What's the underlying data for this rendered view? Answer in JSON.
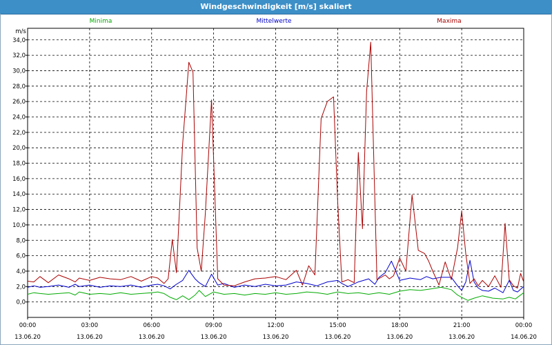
{
  "window": {
    "title": "Windgeschwindigkeit [m/s] skaliert"
  },
  "chart_data": {
    "type": "line",
    "title": "Windgeschwindigkeit [m/s] skaliert",
    "ylabel": "m/s",
    "ylim": [
      -2.0,
      35.5
    ],
    "xlim": [
      0,
      24
    ],
    "y_ticks": [
      "0,0",
      "2,0",
      "4,0",
      "6,0",
      "8,0",
      "10,0",
      "12,0",
      "14,0",
      "16,0",
      "18,0",
      "20,0",
      "22,0",
      "24,0",
      "26,0",
      "28,0",
      "30,0",
      "32,0",
      "34,0"
    ],
    "y_tick_values": [
      0,
      2,
      4,
      6,
      8,
      10,
      12,
      14,
      16,
      18,
      20,
      22,
      24,
      26,
      28,
      30,
      32,
      34
    ],
    "x_ticks": [
      {
        "time": "00:00",
        "date": "13.06.20"
      },
      {
        "time": "03:00",
        "date": "13.06.20"
      },
      {
        "time": "06:00",
        "date": "13.06.20"
      },
      {
        "time": "09:00",
        "date": "13.06.20"
      },
      {
        "time": "12:00",
        "date": "13.06.20"
      },
      {
        "time": "15:00",
        "date": "13.06.20"
      },
      {
        "time": "18:00",
        "date": "13.06.20"
      },
      {
        "time": "21:00",
        "date": "13.06.20"
      },
      {
        "time": "00:00",
        "date": "14.06.20"
      }
    ],
    "x_tick_values": [
      0,
      3,
      6,
      9,
      12,
      15,
      18,
      21,
      24
    ],
    "grid": true,
    "legend": "top",
    "series": [
      {
        "name": "Minima",
        "color": "#00aa00",
        "x": [
          0,
          0.3,
          0.6,
          1.0,
          1.5,
          2.0,
          2.3,
          2.5,
          3.0,
          3.5,
          4.0,
          4.5,
          5.0,
          5.5,
          6.0,
          6.3,
          6.6,
          6.9,
          7.2,
          7.5,
          7.8,
          8.1,
          8.3,
          8.6,
          9.0,
          9.5,
          10.0,
          10.5,
          11.0,
          11.5,
          12.0,
          12.5,
          13.0,
          13.5,
          14.0,
          14.5,
          15.0,
          15.5,
          16.0,
          16.5,
          17.0,
          17.5,
          18.0,
          18.5,
          19.0,
          19.5,
          20.0,
          20.5,
          20.8,
          21.0,
          21.3,
          21.6,
          22.0,
          22.5,
          23.0,
          23.3,
          23.6,
          24.0
        ],
        "values": [
          1.0,
          1.2,
          1.1,
          1.0,
          1.1,
          1.2,
          0.9,
          1.3,
          1.0,
          1.1,
          1.0,
          1.2,
          1.0,
          1.1,
          1.2,
          1.3,
          1.1,
          0.6,
          0.3,
          0.8,
          0.3,
          0.9,
          1.5,
          0.7,
          1.3,
          1.0,
          1.1,
          0.9,
          1.1,
          1.0,
          1.2,
          1.0,
          1.1,
          1.3,
          1.2,
          1.0,
          1.3,
          1.1,
          1.2,
          1.0,
          1.2,
          1.0,
          1.4,
          1.6,
          1.5,
          1.7,
          1.9,
          1.6,
          0.9,
          0.6,
          0.2,
          0.5,
          0.8,
          0.5,
          0.4,
          0.6,
          0.4,
          1.2
        ]
      },
      {
        "name": "Mittelwerte",
        "color": "#0000cc",
        "x": [
          0,
          0.3,
          0.6,
          1.0,
          1.5,
          2.0,
          2.3,
          2.5,
          3.0,
          3.5,
          4.0,
          4.5,
          5.0,
          5.5,
          6.0,
          6.3,
          6.6,
          6.9,
          7.2,
          7.5,
          7.8,
          8.1,
          8.3,
          8.6,
          8.9,
          9.2,
          9.5,
          10.0,
          10.5,
          11.0,
          11.5,
          12.0,
          12.5,
          13.0,
          13.5,
          14.0,
          14.5,
          15.0,
          15.2,
          15.5,
          16.0,
          16.5,
          16.8,
          17.0,
          17.3,
          17.6,
          18.0,
          18.5,
          19.0,
          19.3,
          19.6,
          20.0,
          20.5,
          20.8,
          21.0,
          21.2,
          21.4,
          21.6,
          21.8,
          22.0,
          22.3,
          22.6,
          23.0,
          23.3,
          23.5,
          23.7,
          24.0
        ],
        "values": [
          1.9,
          2.1,
          1.9,
          2.0,
          2.2,
          1.9,
          2.3,
          2.0,
          2.2,
          1.9,
          2.1,
          2.0,
          2.2,
          1.9,
          2.2,
          2.3,
          2.1,
          1.7,
          2.3,
          2.8,
          4.1,
          3.0,
          2.5,
          2.0,
          3.6,
          2.2,
          2.4,
          1.9,
          2.2,
          2.0,
          2.3,
          2.1,
          2.2,
          2.6,
          2.4,
          2.1,
          2.6,
          2.8,
          2.4,
          2.0,
          2.6,
          3.0,
          2.3,
          3.2,
          3.8,
          5.3,
          2.8,
          3.1,
          2.9,
          3.3,
          3.0,
          3.2,
          3.2,
          2.1,
          1.5,
          2.6,
          5.4,
          2.6,
          1.8,
          1.5,
          1.4,
          1.8,
          1.2,
          2.8,
          1.5,
          1.3,
          2.0
        ]
      },
      {
        "name": "Maxima",
        "color": "#aa0000",
        "x": [
          0,
          0.3,
          0.6,
          1.0,
          1.5,
          2.0,
          2.3,
          2.5,
          3.0,
          3.5,
          4.0,
          4.5,
          5.0,
          5.5,
          6.0,
          6.3,
          6.6,
          6.8,
          7.0,
          7.2,
          7.5,
          7.8,
          8.0,
          8.2,
          8.4,
          8.6,
          8.9,
          9.2,
          9.5,
          10.0,
          10.5,
          11.0,
          11.5,
          12.0,
          12.5,
          13.0,
          13.3,
          13.6,
          13.9,
          14.2,
          14.5,
          14.8,
          15.0,
          15.2,
          15.5,
          15.8,
          16.0,
          16.2,
          16.4,
          16.6,
          16.9,
          17.1,
          17.3,
          17.5,
          17.7,
          18.0,
          18.3,
          18.6,
          18.9,
          19.2,
          19.4,
          19.6,
          19.9,
          20.2,
          20.5,
          20.8,
          21.0,
          21.2,
          21.4,
          21.6,
          21.8,
          22.0,
          22.3,
          22.6,
          22.9,
          23.1,
          23.3,
          23.5,
          23.7,
          23.85,
          24.0
        ],
        "values": [
          2.7,
          2.6,
          3.3,
          2.5,
          3.5,
          3.0,
          2.6,
          3.1,
          2.8,
          3.2,
          3.0,
          2.9,
          3.3,
          2.7,
          3.3,
          3.1,
          2.4,
          3.0,
          8.1,
          3.8,
          20.5,
          31.1,
          29.8,
          7.0,
          4.0,
          11.5,
          26.2,
          3.0,
          2.2,
          2.1,
          2.6,
          3.0,
          3.1,
          3.3,
          2.9,
          4.1,
          2.2,
          4.7,
          3.5,
          23.8,
          26.0,
          26.6,
          13.0,
          2.6,
          2.9,
          2.5,
          19.4,
          9.5,
          27.3,
          33.7,
          2.9,
          3.2,
          3.5,
          3.0,
          3.4,
          5.7,
          4.0,
          13.9,
          6.7,
          6.3,
          5.3,
          4.0,
          2.2,
          5.2,
          2.9,
          7.0,
          11.8,
          6.2,
          2.4,
          3.0,
          2.1,
          2.8,
          2.0,
          3.4,
          1.9,
          10.2,
          2.9,
          2.1,
          1.8,
          3.7,
          2.6
        ]
      }
    ]
  }
}
